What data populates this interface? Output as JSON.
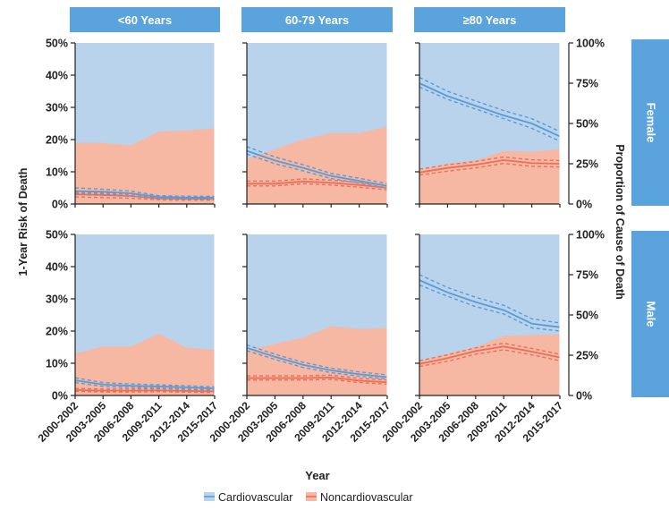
{
  "chart_data": {
    "type": "area",
    "layout": "small-multiples 2 rows x 3 columns",
    "column_headers": [
      "<60 Years",
      "60-79 Years",
      "≥80 Years"
    ],
    "row_headers": [
      "Female",
      "Male"
    ],
    "xlabel": "Year",
    "ylabel_left": "1-Year Risk of Death",
    "ylabel_right": "Proportion of Cause of Death",
    "categories": [
      "2000-2002",
      "2003-2005",
      "2006-2008",
      "2009-2011",
      "2012-2014",
      "2015-2017"
    ],
    "left_axis": {
      "ylim": [
        0,
        50
      ],
      "ticks": [
        "0%",
        "10%",
        "20%",
        "30%",
        "40%",
        "50%"
      ]
    },
    "right_axis": {
      "ylim": [
        0,
        100
      ],
      "ticks": [
        "0%",
        "25%",
        "50%",
        "75%",
        "100%"
      ]
    },
    "legend": {
      "placement": "bottom-center",
      "items": [
        {
          "label": "Cardiovascular",
          "color": "#5b9bd5"
        },
        {
          "label": "Noncardiovascular",
          "color": "#e8705a"
        }
      ]
    },
    "grid": false,
    "colors": {
      "header_bg": "#5ba3dc",
      "header_text": "#ffffff",
      "cv_area": "#b9d3ec",
      "noncv_area": "#f6b7a3",
      "cv_line": "#5b9bd5",
      "noncv_line": "#e8705a"
    },
    "panels": [
      {
        "row": "Female",
        "age": "<60 Years",
        "noncv_proportion_pct": [
          38,
          38,
          36.4,
          45,
          45.6,
          47
        ],
        "cardiovascular_risk_pct": [
          4.0,
          3.8,
          3.3,
          2.2,
          2.0,
          2.0
        ],
        "cardiovascular_ci_pct": [
          [
            3.2,
            5.0
          ],
          [
            3.0,
            4.6
          ],
          [
            2.6,
            4.0
          ],
          [
            1.8,
            2.6
          ],
          [
            1.6,
            2.4
          ],
          [
            1.6,
            2.4
          ]
        ],
        "noncardiovascular_risk_pct": [
          3.0,
          2.8,
          2.5,
          1.7,
          1.6,
          1.6
        ],
        "noncardiovascular_ci_pct": [
          [
            2.2,
            3.6
          ],
          [
            2.0,
            3.4
          ],
          [
            1.8,
            3.1
          ],
          [
            1.3,
            2.1
          ],
          [
            1.2,
            2.0
          ],
          [
            1.2,
            2.0
          ]
        ]
      },
      {
        "row": "Female",
        "age": "60-79 Years",
        "noncv_proportion_pct": [
          28,
          34,
          40,
          44,
          44,
          48
        ],
        "cardiovascular_risk_pct": [
          16.5,
          13.5,
          11.2,
          8.7,
          7.2,
          5.6
        ],
        "cardiovascular_ci_pct": [
          [
            15.5,
            17.8
          ],
          [
            12.5,
            14.6
          ],
          [
            10.3,
            12.2
          ],
          [
            7.9,
            9.5
          ],
          [
            6.5,
            8.0
          ],
          [
            5.0,
            6.3
          ]
        ],
        "noncardiovascular_risk_pct": [
          6.3,
          6.3,
          7.0,
          6.6,
          5.9,
          5.0
        ],
        "noncardiovascular_ci_pct": [
          [
            5.6,
            7.1
          ],
          [
            5.6,
            7.1
          ],
          [
            6.3,
            7.8
          ],
          [
            5.9,
            7.4
          ],
          [
            5.2,
            6.7
          ],
          [
            4.4,
            5.7
          ]
        ]
      },
      {
        "row": "Female",
        "age": "≥80 Years",
        "noncv_proportion_pct": [
          21,
          25,
          27,
          33,
          32.5,
          34
        ],
        "cardiovascular_risk_pct": [
          37.5,
          33.5,
          30.5,
          27.5,
          25,
          21
        ],
        "cardiovascular_ci_pct": [
          [
            36.3,
            39.3
          ],
          [
            32.5,
            35
          ],
          [
            29.5,
            32
          ],
          [
            26.5,
            29
          ],
          [
            23.5,
            26.5
          ],
          [
            19.5,
            22.5
          ]
        ],
        "noncardiovascular_risk_pct": [
          9.8,
          11.2,
          12.2,
          13.6,
          12.7,
          12.5
        ],
        "noncardiovascular_ci_pct": [
          [
            9.0,
            10.8
          ],
          [
            10.2,
            12.2
          ],
          [
            11.2,
            13.2
          ],
          [
            12.6,
            14.6
          ],
          [
            11.7,
            13.7
          ],
          [
            11.5,
            13.5
          ]
        ]
      },
      {
        "row": "Male",
        "age": "<60 Years",
        "noncv_proportion_pct": [
          26,
          30.4,
          30.4,
          38.4,
          29.6,
          28.4
        ],
        "cardiovascular_risk_pct": [
          4.7,
          3.4,
          3.0,
          2.8,
          2.5,
          2.2
        ],
        "cardiovascular_ci_pct": [
          [
            4.0,
            5.5
          ],
          [
            2.8,
            4.0
          ],
          [
            2.5,
            3.6
          ],
          [
            2.3,
            3.3
          ],
          [
            2.0,
            3.0
          ],
          [
            1.8,
            2.7
          ]
        ],
        "noncardiovascular_risk_pct": [
          1.7,
          1.5,
          1.5,
          1.6,
          1.4,
          1.3
        ],
        "noncardiovascular_ci_pct": [
          [
            1.3,
            2.2
          ],
          [
            1.1,
            2.0
          ],
          [
            1.1,
            2.0
          ],
          [
            1.2,
            2.1
          ],
          [
            1.0,
            1.9
          ],
          [
            0.9,
            1.7
          ]
        ]
      },
      {
        "row": "Male",
        "age": "60-79 Years",
        "noncv_proportion_pct": [
          28,
          32,
          36,
          43,
          41.4,
          42
        ],
        "cardiovascular_risk_pct": [
          14.8,
          12.0,
          9.5,
          7.8,
          6.6,
          5.7
        ],
        "cardiovascular_ci_pct": [
          [
            13.9,
            15.7
          ],
          [
            11.2,
            12.8
          ],
          [
            8.7,
            10.3
          ],
          [
            7.1,
            8.5
          ],
          [
            6.0,
            7.3
          ],
          [
            5.1,
            6.4
          ]
        ],
        "noncardiovascular_risk_pct": [
          5.4,
          5.4,
          5.4,
          5.6,
          4.6,
          4.1
        ],
        "noncardiovascular_ci_pct": [
          [
            4.8,
            6.1
          ],
          [
            4.8,
            6.1
          ],
          [
            4.8,
            6.1
          ],
          [
            5.0,
            6.3
          ],
          [
            4.0,
            5.3
          ],
          [
            3.5,
            4.8
          ]
        ]
      },
      {
        "row": "Male",
        "age": "≥80 Years",
        "noncv_proportion_pct": [
          21,
          26,
          30,
          37,
          37.5,
          38
        ],
        "cardiovascular_risk_pct": [
          35.8,
          32.0,
          29.0,
          26.5,
          22.3,
          21.2
        ],
        "cardiovascular_ci_pct": [
          [
            34.3,
            37.5
          ],
          [
            30.8,
            33.5
          ],
          [
            27.6,
            30.5
          ],
          [
            25.3,
            28.0
          ],
          [
            21.0,
            23.8
          ],
          [
            20.0,
            22.5
          ]
        ],
        "noncardiovascular_risk_pct": [
          9.8,
          11.6,
          13.8,
          15.2,
          13.6,
          11.8
        ],
        "noncardiovascular_ci_pct": [
          [
            9.0,
            10.8
          ],
          [
            10.6,
            12.6
          ],
          [
            12.8,
            14.8
          ],
          [
            14.2,
            16.2
          ],
          [
            12.6,
            14.6
          ],
          [
            10.8,
            12.8
          ]
        ]
      }
    ]
  }
}
